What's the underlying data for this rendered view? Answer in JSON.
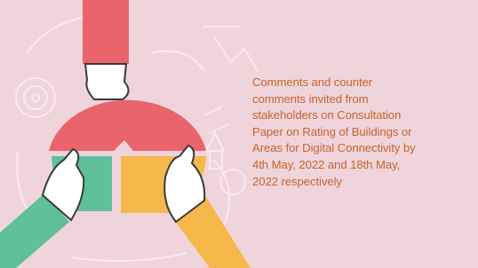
{
  "caption": {
    "lines": [
      "Comments and counter",
      "comments invited from",
      "stakeholders on Consultation",
      "Paper on Rating of Buildings or",
      "Areas for Digital Connectivity by",
      "4th May, 2022 and 18th May,",
      "2022 respectively"
    ]
  }
}
